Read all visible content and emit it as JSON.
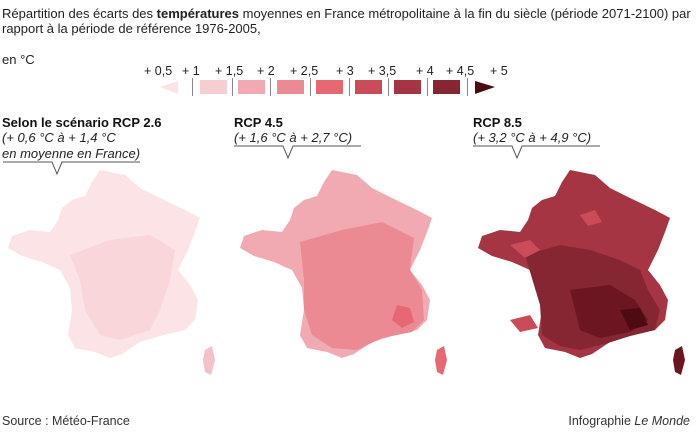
{
  "title": {
    "part1": "Répartition des écarts des ",
    "bold": "températures",
    "part2": " moyennes en France métropolitaine à la fin du siècle (période 2071-2100) par rapport à la période de référence 1976-2005,",
    "unit": "en °C"
  },
  "legend": {
    "ticks": [
      "+ 0,5",
      "+ 1",
      "+ 1,5",
      "+ 2",
      "+ 2,5",
      "+ 3",
      "+ 3,5",
      "+ 4",
      "+ 4,5",
      "+ 5"
    ],
    "colors": [
      "#fbe3e6",
      "#f7cdd2",
      "#f2aab2",
      "#ec8a94",
      "#e66872",
      "#c94c58",
      "#a63543",
      "#862632",
      "#6b1620",
      "#4d0b12"
    ]
  },
  "panels": [
    {
      "title": "Selon le scénario RCP 2.6",
      "sub1": "(+ 0,6 °C à + 1,4 °C",
      "sub2": "en moyenne en France)"
    },
    {
      "title": "RCP 4.5",
      "sub1": "(+ 1,6 °C à + 2,7 °C)"
    },
    {
      "title": "RCP 8.5",
      "sub1": "(+ 3,2 °C à + 4,9 °C)"
    }
  ],
  "footer": {
    "source": "Source : Météo-France",
    "credit_prefix": "Infographie ",
    "credit_brand": "Le Monde"
  }
}
